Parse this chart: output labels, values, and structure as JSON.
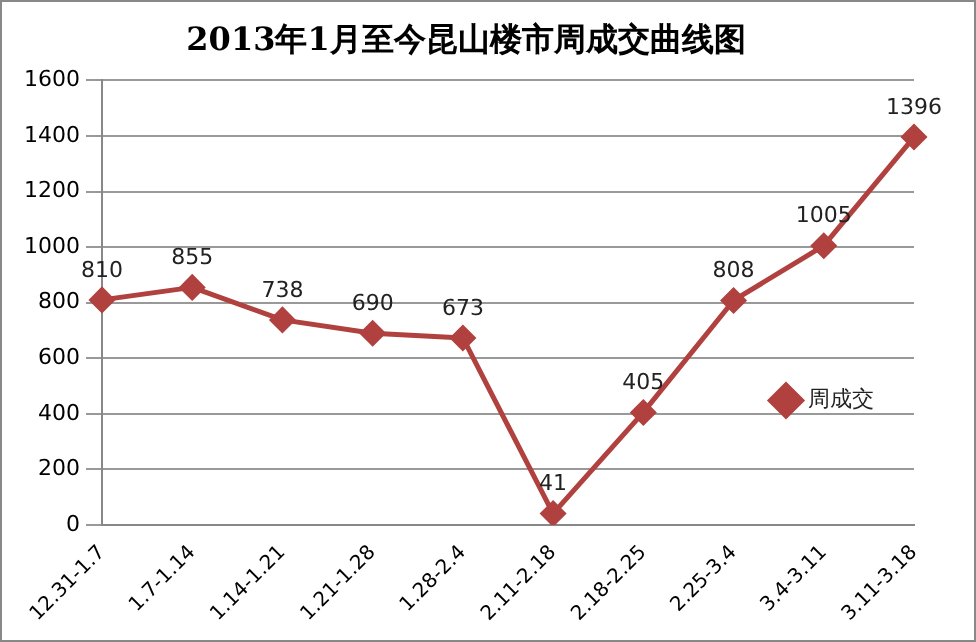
{
  "chart_data": {
    "type": "line",
    "title": "2013年1月至今昆山楼市周成交曲线图",
    "categories": [
      "12.31-1.7",
      "1.7-1.14",
      "1.14-1.21",
      "1.21-1.28",
      "1.28-2.4",
      "2.11-2.18",
      "2.18-2.25",
      "2.25-3.4",
      "3.4-3.11",
      "3.11-3.18"
    ],
    "series": [
      {
        "name": "周成交",
        "color": "#b0413e",
        "values": [
          810,
          855,
          738,
          690,
          673,
          41,
          405,
          808,
          1005,
          1396
        ]
      }
    ],
    "ylim": [
      0,
      1600
    ],
    "yticks": [
      0,
      200,
      400,
      600,
      800,
      1000,
      1200,
      1400,
      1600
    ],
    "grid": "y",
    "legend": "right",
    "marker": "diamond",
    "data_labels": true
  }
}
